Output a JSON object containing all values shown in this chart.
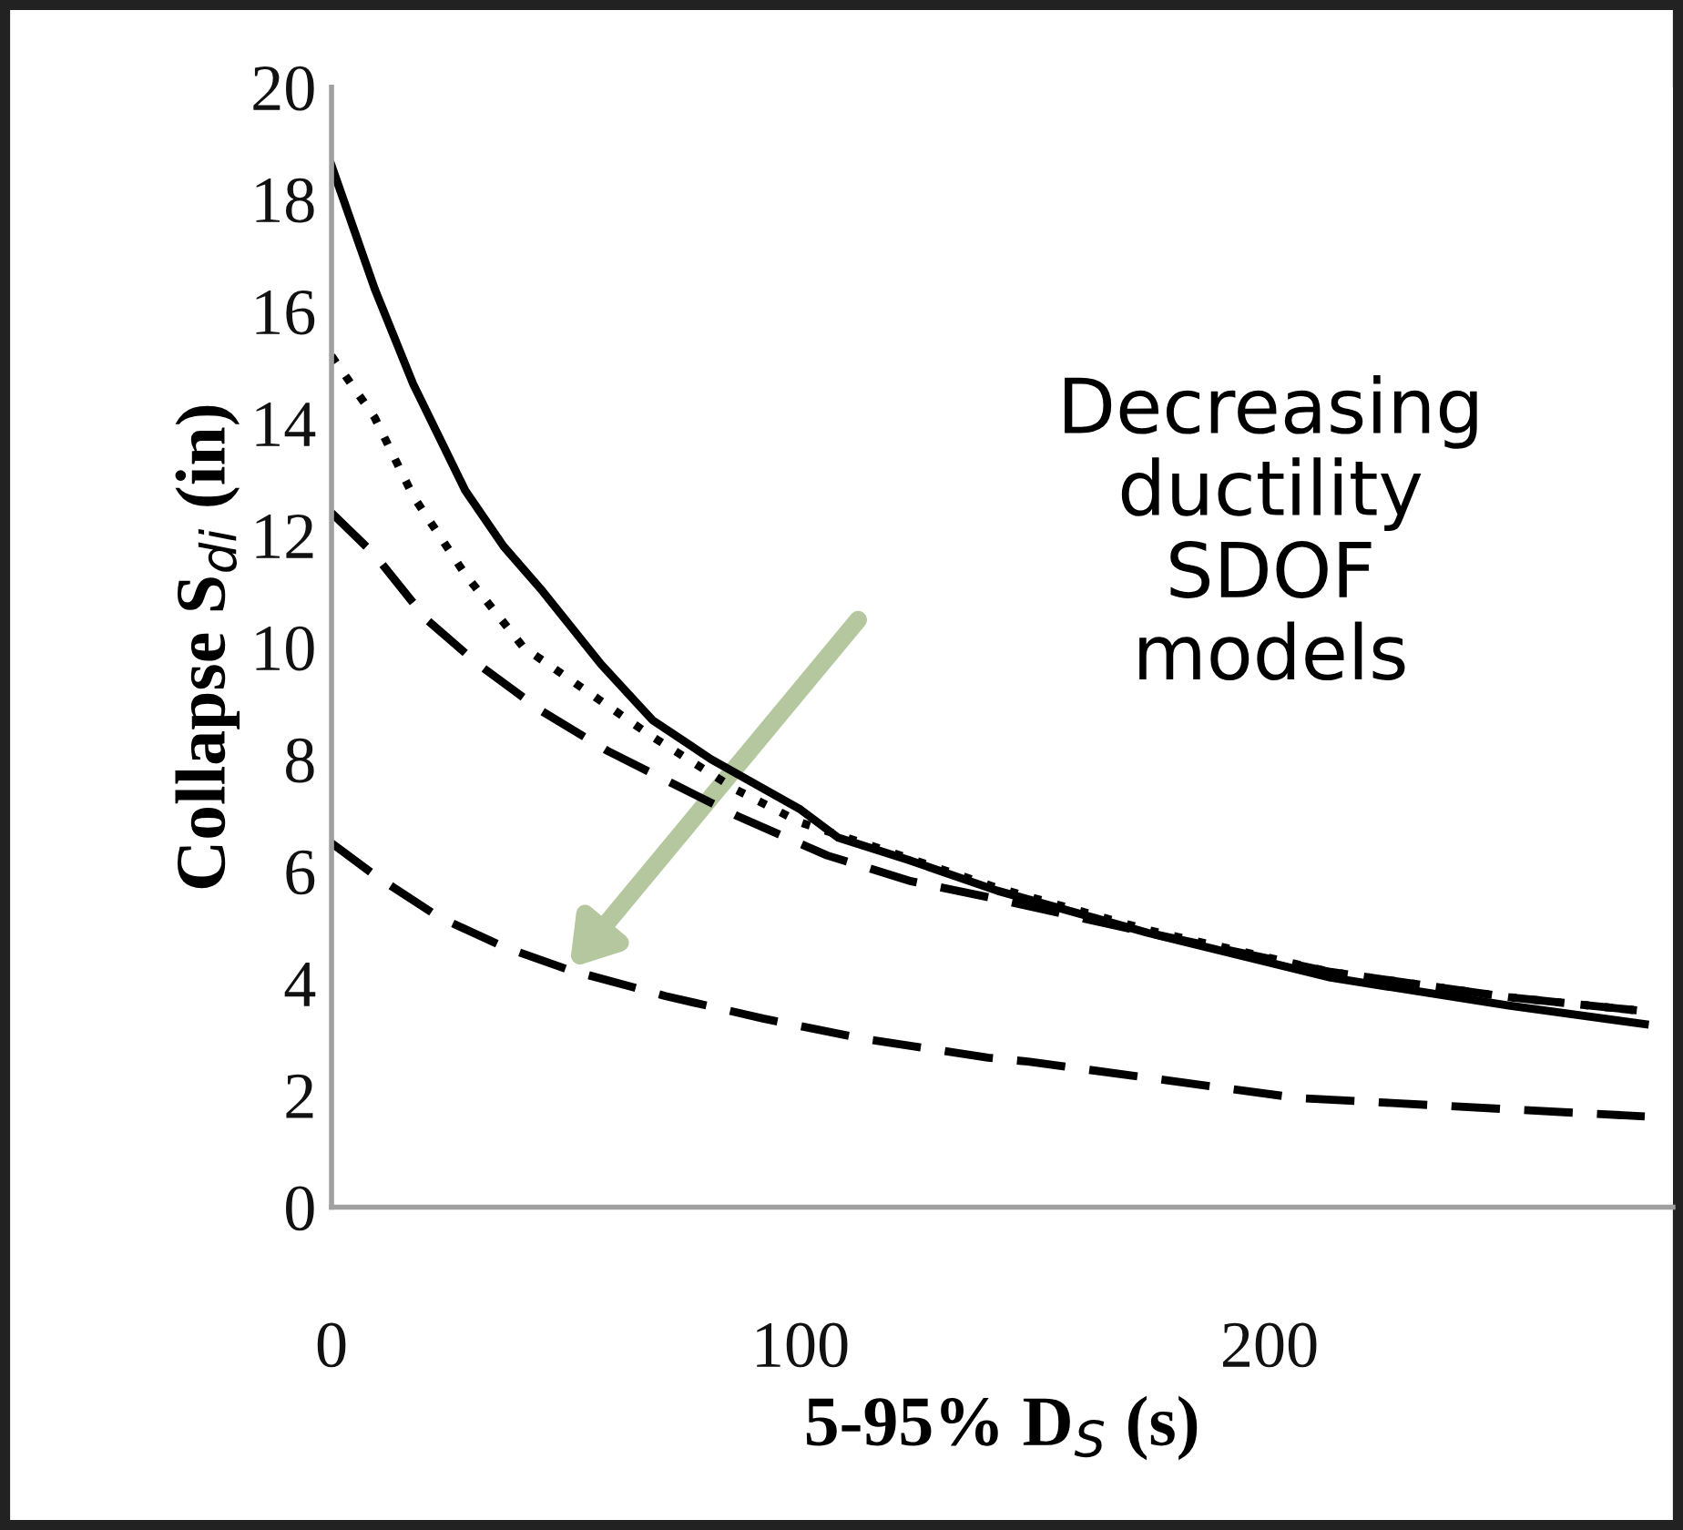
{
  "chart_data": {
    "type": "line",
    "xlabel": "5-95% D$_{S}$ (s)",
    "ylabel": "Collapse S$_{di}$ (in)",
    "xlim": [
      0,
      286
    ],
    "xticks": [
      0,
      100,
      200
    ],
    "ylim": [
      0,
      20
    ],
    "yticks": [
      0,
      2,
      4,
      6,
      8,
      10,
      12,
      14,
      16,
      18,
      20
    ],
    "grid": false,
    "legend": false,
    "marker": "none",
    "annotations": [
      "Decreasing\nductility\nSDOF\nmodels"
    ],
    "series": [
      {
        "color": "#000000",
        "line_style": "solid",
        "x": [
          0,
          9.2,
          17.4,
          28.5,
          36.7,
          45,
          57.4,
          68.4,
          80.9,
          100,
          108,
          123,
          142,
          174,
          213,
          251,
          280
        ],
        "values": [
          18.6,
          16.4,
          14.7,
          12.8,
          11.8,
          11.0,
          9.7,
          8.7,
          8.0,
          7.1,
          6.6,
          6.2,
          5.65,
          4.9,
          4.1,
          3.6,
          3.27
        ]
      },
      {
        "color": "#000000",
        "line_style": "dotted",
        "x": [
          0,
          9.2,
          17.4,
          28.5,
          40.9,
          54.7,
          68.4,
          86.4,
          100,
          117,
          142,
          174,
          213,
          251,
          280
        ],
        "values": [
          15.2,
          14.1,
          12.7,
          11.3,
          10.0,
          9.2,
          8.4,
          7.45,
          6.87,
          6.4,
          5.7,
          4.95,
          4.2,
          3.75,
          3.5
        ]
      },
      {
        "color": "#000000",
        "line_style": "dashed",
        "x": [
          0,
          9.2,
          20.2,
          31.2,
          45,
          58.8,
          72.6,
          86.4,
          105.7,
          123.6,
          142,
          174,
          213,
          251,
          280
        ],
        "values": [
          12.4,
          11.65,
          10.5,
          9.7,
          8.85,
          8.15,
          7.57,
          6.99,
          6.28,
          5.82,
          5.5,
          4.9,
          4.2,
          3.75,
          3.5
        ]
      },
      {
        "color": "#000000",
        "line_style": "dashed",
        "x": [
          0,
          9.2,
          22.9,
          36.7,
          50.5,
          71.2,
          92,
          112.6,
          140,
          148.5,
          206,
          280
        ],
        "values": [
          6.5,
          5.93,
          5.18,
          4.65,
          4.24,
          3.77,
          3.37,
          3.02,
          2.67,
          2.6,
          1.95,
          1.62
        ]
      }
    ]
  }
}
